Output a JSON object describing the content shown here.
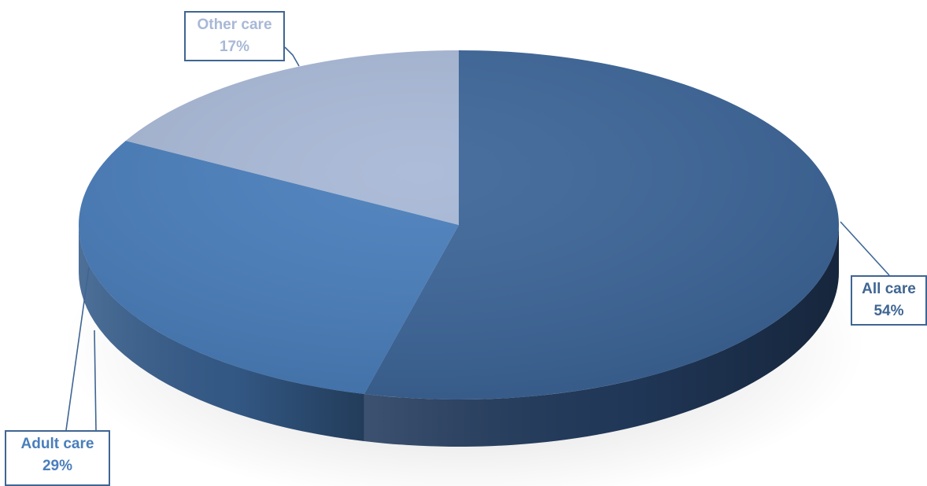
{
  "chart_data": {
    "type": "pie",
    "style": "3d",
    "title": "",
    "slices": [
      {
        "label": "All care",
        "value": 54,
        "value_label": "54%",
        "color": "#3d6699",
        "side_color": "#223a5c",
        "text_color": "#3f6593"
      },
      {
        "label": "Adult care",
        "value": 29,
        "value_label": "29%",
        "color": "#4a7ebb",
        "side_color": "#355c8a",
        "text_color": "#4a7ebb"
      },
      {
        "label": "Other care",
        "value": 17,
        "value_label": "17%",
        "color": "#a8b8d6",
        "side_color": "#8796b4",
        "text_color": "#a8b8d6"
      }
    ],
    "legend": "none",
    "data_labels": "outside with leader lines"
  }
}
